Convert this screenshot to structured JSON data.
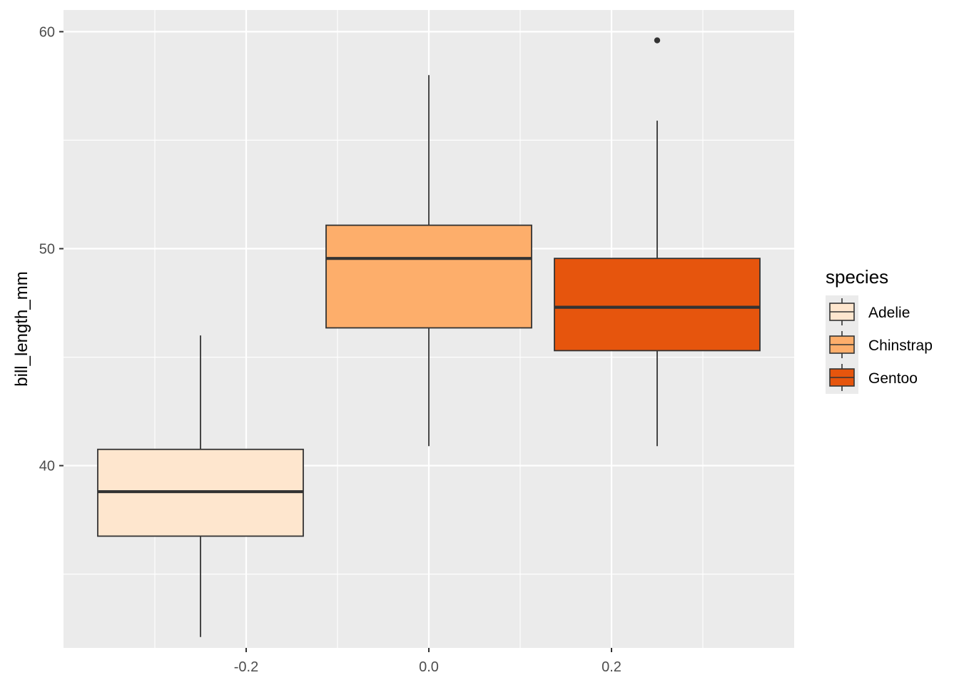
{
  "chart_data": {
    "type": "boxplot",
    "xlabel": "",
    "ylabel": "bill_length_mm",
    "xlim": [
      -0.4,
      0.4
    ],
    "ylim": [
      31.6,
      61.0
    ],
    "x_ticks": [
      -0.2,
      0.0,
      0.2
    ],
    "x_tick_labels": [
      "-0.2",
      "0.0",
      "0.2"
    ],
    "y_ticks": [
      40,
      50,
      60
    ],
    "y_tick_labels": [
      "40",
      "50",
      "60"
    ],
    "grid": true,
    "legend": {
      "title": "species",
      "position": "right"
    },
    "series": [
      {
        "name": "Adelie",
        "color": "#FEE6CE",
        "x_center": -0.25,
        "whisker_low": 32.1,
        "q1": 36.75,
        "median": 38.8,
        "q3": 40.75,
        "whisker_high": 46.0,
        "outliers": []
      },
      {
        "name": "Chinstrap",
        "color": "#FDAE6B",
        "x_center": 0.0,
        "whisker_low": 40.9,
        "q1": 46.35,
        "median": 49.55,
        "q3": 51.08,
        "whisker_high": 58.0,
        "outliers": []
      },
      {
        "name": "Gentoo",
        "color": "#E6550D",
        "x_center": 0.25,
        "whisker_low": 40.9,
        "q1": 45.3,
        "median": 47.3,
        "q3": 49.55,
        "whisker_high": 55.9,
        "outliers": [
          59.6
        ]
      }
    ],
    "box_half_width": 0.1125
  },
  "colors": {
    "panel_background": "#EBEBEB",
    "grid_major": "#FFFFFF",
    "box_outline": "#333333"
  }
}
